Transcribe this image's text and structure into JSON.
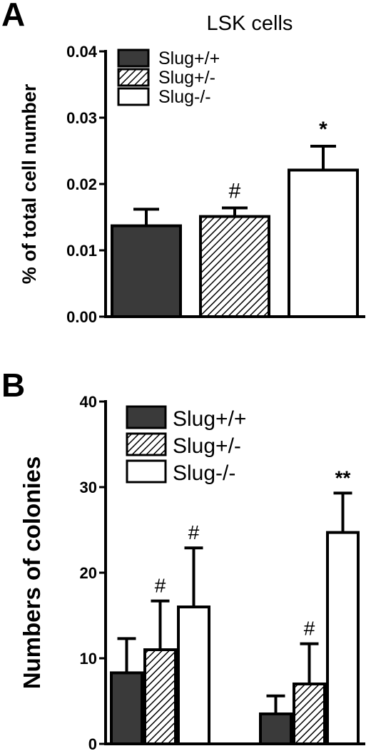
{
  "chart_data": [
    {
      "panel": "A",
      "type": "bar",
      "title": "LSK cells",
      "ylabel": "% of total cell number",
      "ylim": [
        0,
        0.04
      ],
      "yticks": [
        "0.00",
        "0.01",
        "0.02",
        "0.03",
        "0.04"
      ],
      "categories": [
        ""
      ],
      "series": [
        {
          "name": "Slug+/+",
          "values": [
            0.0137
          ],
          "errors": [
            0.0025
          ],
          "annotations": [
            ""
          ],
          "fill": "dark",
          "color": "#3a3a3a"
        },
        {
          "name": "Slug+/-",
          "values": [
            0.0151
          ],
          "errors": [
            0.0013
          ],
          "annotations": [
            "#"
          ],
          "fill": "hatch",
          "color": "#000000"
        },
        {
          "name": "Slug-/-",
          "values": [
            0.0221
          ],
          "errors": [
            0.0036
          ],
          "annotations": [
            "*"
          ],
          "fill": "white",
          "color": "#ffffff"
        }
      ],
      "legend_position": "top-left",
      "grid": false
    },
    {
      "panel": "B",
      "type": "bar",
      "title": "",
      "ylabel": "Numbers of colonies",
      "ylim": [
        0,
        40
      ],
      "yticks": [
        "0",
        "10",
        "20",
        "30",
        "40"
      ],
      "categories": [
        "",
        ""
      ],
      "series": [
        {
          "name": "Slug+/+",
          "values": [
            8.3,
            3.5
          ],
          "errors": [
            4.0,
            2.1
          ],
          "annotations": [
            "",
            ""
          ],
          "fill": "dark",
          "color": "#3a3a3a"
        },
        {
          "name": "Slug+/-",
          "values": [
            11.0,
            7.0
          ],
          "errors": [
            5.7,
            4.7
          ],
          "annotations": [
            "#",
            "#"
          ],
          "fill": "hatch",
          "color": "#000000"
        },
        {
          "name": "Slug-/-",
          "values": [
            16.0,
            24.7
          ],
          "errors": [
            6.9,
            4.6
          ],
          "annotations": [
            "#",
            "**"
          ],
          "fill": "white",
          "color": "#ffffff"
        }
      ],
      "legend_position": "top-left",
      "grid": false
    }
  ]
}
